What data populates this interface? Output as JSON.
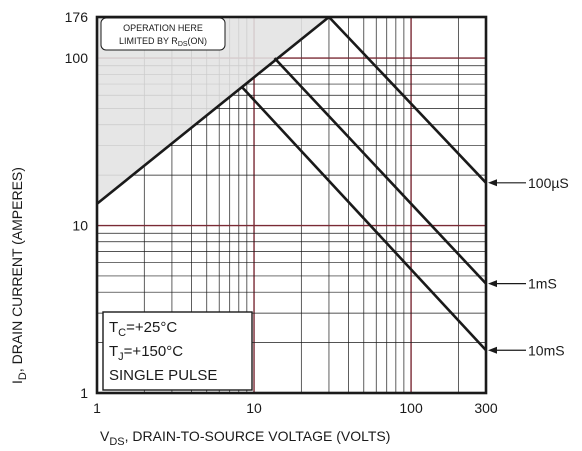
{
  "chart_data": {
    "type": "line",
    "scale": {
      "x": "log",
      "y": "log"
    },
    "xlim": [
      1,
      300
    ],
    "ylim": [
      1,
      176
    ],
    "x_ticks": [
      {
        "value": 1,
        "label": "1"
      },
      {
        "value": 10,
        "label": "10"
      },
      {
        "value": 100,
        "label": "100"
      },
      {
        "value": 300,
        "label": "300"
      }
    ],
    "y_ticks": [
      {
        "value": 1,
        "label": "1"
      },
      {
        "value": 10,
        "label": "10"
      },
      {
        "value": 100,
        "label": "100"
      },
      {
        "value": 176,
        "label": "176"
      }
    ],
    "xlabel": {
      "main": "V",
      "sub": "DS",
      "rest": ", DRAIN-TO-SOURCE VOLTAGE (VOLTS)"
    },
    "ylabel": {
      "main": "I",
      "sub": "D",
      "rest": ", DRAIN CURRENT (AMPERES)"
    },
    "grid": true,
    "colors": {
      "grid_decade": "#7a2a35",
      "grid_minor": "#1a1a1a",
      "curve": "#1a1a1a",
      "shade": "#e3e3e3"
    },
    "region_note": {
      "line1": "OPERATION HERE",
      "line2_main": "LIMITED BY R",
      "line2_sub": "DS",
      "line2_rest": "(ON)"
    },
    "rds_limit": {
      "x": [
        1,
        30
      ],
      "y": [
        13.5,
        176
      ]
    },
    "current_limit": 176,
    "series": [
      {
        "name": "100µS",
        "x": [
          30,
          300
        ],
        "y": [
          176,
          18
        ]
      },
      {
        "name": "1mS",
        "x": [
          13.5,
          300
        ],
        "y": [
          100,
          4.5
        ]
      },
      {
        "name": "10mS",
        "x": [
          8.4,
          300
        ],
        "y": [
          67,
          1.8
        ]
      }
    ],
    "conditions": {
      "tc": {
        "main": "T",
        "sub": "C",
        "rest": "=+25°C"
      },
      "tj": {
        "main": "T",
        "sub": "J",
        "rest": "=+150°C"
      },
      "pulse": "SINGLE PULSE"
    }
  }
}
